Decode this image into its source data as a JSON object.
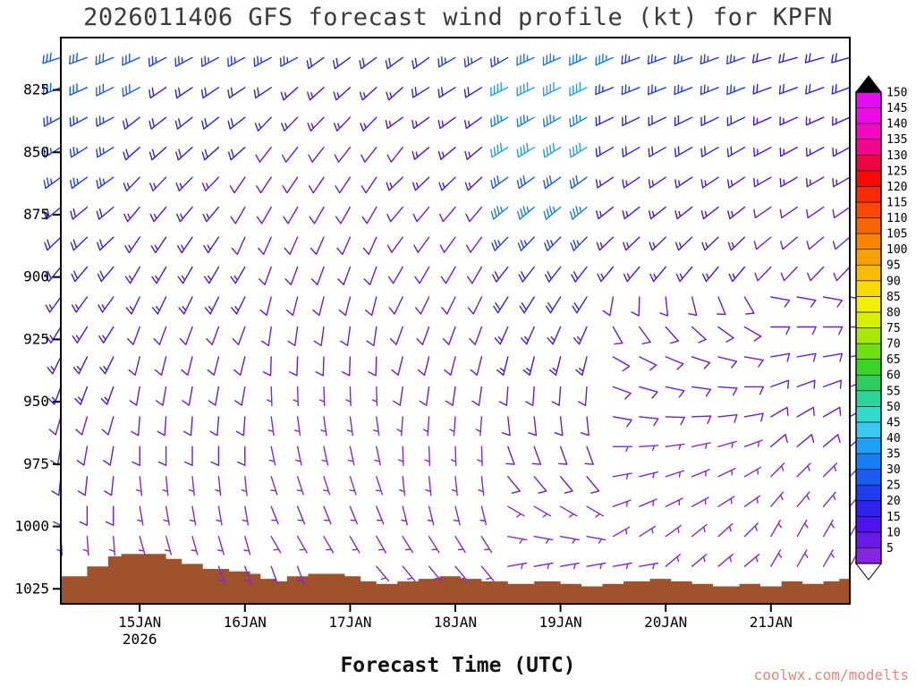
{
  "title": "2026011406 GFS forecast wind profile (kt) for KPFN",
  "xlabel": "Forecast Time (UTC)",
  "watermark": "coolwx.com/modelts",
  "colors": {
    "title_text": "#3c3c3c",
    "watermark_text": "#fa8072",
    "terrain": "#a0522d",
    "axis": "#000000"
  },
  "chart_data": {
    "type": "wind-barb-profile",
    "title": "2026011406 GFS forecast wind profile (kt) for KPFN",
    "model_run": "2026011406",
    "model": "GFS",
    "station": "KPFN",
    "units": "kt",
    "xlabel": "Forecast Time (UTC)",
    "y_axis": {
      "label_values": [
        825,
        850,
        875,
        900,
        925,
        950,
        975,
        1000,
        1025
      ],
      "domain": [
        804,
        1031
      ]
    },
    "x_axis": {
      "steps": 30,
      "ticks": [
        {
          "label": "15JAN",
          "sub": "2026",
          "step": 3
        },
        {
          "label": "16JAN",
          "step": 7
        },
        {
          "label": "17JAN",
          "step": 11
        },
        {
          "label": "18JAN",
          "step": 15
        },
        {
          "label": "19JAN",
          "step": 19
        },
        {
          "label": "20JAN",
          "step": 23
        },
        {
          "label": "21JAN",
          "step": 27
        }
      ]
    },
    "colorbar": {
      "values": [
        5,
        10,
        15,
        20,
        25,
        30,
        35,
        40,
        45,
        50,
        55,
        60,
        65,
        70,
        75,
        80,
        85,
        90,
        95,
        100,
        105,
        110,
        115,
        120,
        125,
        130,
        135,
        140,
        145,
        150
      ],
      "colors": [
        "#8426e0",
        "#6a1ae8",
        "#4b14ef",
        "#2d22ee",
        "#1f3cf0",
        "#1a5cf0",
        "#177df2",
        "#20a0f4",
        "#38c8f0",
        "#30dcc8",
        "#2cd49c",
        "#2ecc5e",
        "#3ad428",
        "#70e012",
        "#a8e80a",
        "#d6ee08",
        "#f2ee06",
        "#f8d806",
        "#f8bc04",
        "#f8a004",
        "#f88404",
        "#f86604",
        "#f84804",
        "#f82a04",
        "#f80808",
        "#ee0440",
        "#f2068c",
        "#f408c4",
        "#ee0ae4",
        "#e20cf0"
      ],
      "over_color": "#000000",
      "under_color": "#ffffff"
    },
    "terrain_color": "#a0522d",
    "terrain": [
      [
        0,
        1020
      ],
      [
        1,
        1016
      ],
      [
        1.8,
        1012
      ],
      [
        2.3,
        1011
      ],
      [
        3.4,
        1011
      ],
      [
        4,
        1013
      ],
      [
        4.6,
        1015
      ],
      [
        5.4,
        1017
      ],
      [
        6.4,
        1018
      ],
      [
        7.2,
        1019
      ],
      [
        7.6,
        1021
      ],
      [
        8.2,
        1022
      ],
      [
        8.6,
        1020
      ],
      [
        9.4,
        1019
      ],
      [
        10,
        1019
      ],
      [
        10.8,
        1020
      ],
      [
        11.4,
        1022
      ],
      [
        12,
        1023
      ],
      [
        12.8,
        1022
      ],
      [
        13.6,
        1021
      ],
      [
        14.4,
        1020
      ],
      [
        15.2,
        1021
      ],
      [
        16,
        1022
      ],
      [
        17,
        1023
      ],
      [
        18,
        1022
      ],
      [
        19,
        1023
      ],
      [
        19.8,
        1024
      ],
      [
        20.6,
        1023
      ],
      [
        21.4,
        1022
      ],
      [
        22.4,
        1021
      ],
      [
        23.2,
        1022
      ],
      [
        24,
        1023
      ],
      [
        24.8,
        1024
      ],
      [
        25.8,
        1023
      ],
      [
        26.6,
        1024
      ],
      [
        27.4,
        1022
      ],
      [
        28.2,
        1023
      ],
      [
        29,
        1022
      ],
      [
        29.6,
        1021
      ],
      [
        30,
        1021
      ]
    ],
    "barb_rows": [
      {
        "level": 812,
        "segments": [
          {
            "n": 4,
            "s": 30,
            "d": 252,
            "dd": -2
          },
          {
            "n": 6,
            "s": 25,
            "d": 242
          },
          {
            "n": 5,
            "s": 20,
            "d": 234
          },
          {
            "n": 3,
            "s": 25,
            "d": 240
          },
          {
            "n": 4,
            "s": 35,
            "d": 246
          },
          {
            "n": 5,
            "s": 25,
            "d": 250
          },
          {
            "n": 4,
            "s": 20,
            "d": 254
          }
        ]
      },
      {
        "level": 824,
        "segments": [
          {
            "n": 4,
            "s": 30,
            "d": 248,
            "dd": -2
          },
          {
            "n": 5,
            "s": 20,
            "d": 236
          },
          {
            "n": 5,
            "s": 15,
            "d": 228
          },
          {
            "n": 3,
            "s": 20,
            "d": 238
          },
          {
            "n": 4,
            "s": 40,
            "d": 244
          },
          {
            "n": 6,
            "s": 25,
            "d": 248
          },
          {
            "n": 4,
            "s": 20,
            "d": 250
          }
        ]
      },
      {
        "level": 836,
        "segments": [
          {
            "n": 3,
            "s": 25,
            "d": 242
          },
          {
            "n": 5,
            "s": 20,
            "d": 232
          },
          {
            "n": 5,
            "s": 15,
            "d": 224
          },
          {
            "n": 4,
            "s": 15,
            "d": 234
          },
          {
            "n": 4,
            "s": 35,
            "d": 240
          },
          {
            "n": 6,
            "s": 20,
            "d": 244
          },
          {
            "n": 4,
            "s": 15,
            "d": 246
          }
        ]
      },
      {
        "level": 848,
        "segments": [
          {
            "n": 3,
            "s": 25,
            "d": 238
          },
          {
            "n": 5,
            "s": 20,
            "d": 228
          },
          {
            "n": 6,
            "s": 10,
            "d": 218
          },
          {
            "n": 3,
            "s": 15,
            "d": 230
          },
          {
            "n": 4,
            "s": 40,
            "d": 238
          },
          {
            "n": 6,
            "s": 20,
            "d": 240
          },
          {
            "n": 4,
            "s": 15,
            "d": 242
          }
        ]
      },
      {
        "level": 860,
        "segments": [
          {
            "n": 3,
            "s": 25,
            "d": 234
          },
          {
            "n": 4,
            "s": 15,
            "d": 224
          },
          {
            "n": 6,
            "s": 10,
            "d": 214
          },
          {
            "n": 4,
            "s": 15,
            "d": 226
          },
          {
            "n": 4,
            "s": 30,
            "d": 234
          },
          {
            "n": 6,
            "s": 15,
            "d": 236
          },
          {
            "n": 4,
            "s": 15,
            "d": 240
          }
        ]
      },
      {
        "level": 872,
        "segments": [
          {
            "n": 3,
            "s": 20,
            "d": 230
          },
          {
            "n": 4,
            "s": 15,
            "d": 220
          },
          {
            "n": 6,
            "s": 10,
            "d": 210
          },
          {
            "n": 4,
            "s": 10,
            "d": 220
          },
          {
            "n": 4,
            "s": 35,
            "d": 230
          },
          {
            "n": 6,
            "s": 15,
            "d": 232
          },
          {
            "n": 4,
            "s": 10,
            "d": 236
          }
        ]
      },
      {
        "level": 884,
        "segments": [
          {
            "n": 3,
            "s": 20,
            "d": 226
          },
          {
            "n": 4,
            "s": 15,
            "d": 214
          },
          {
            "n": 6,
            "s": 10,
            "d": 204
          },
          {
            "n": 4,
            "s": 10,
            "d": 216
          },
          {
            "n": 4,
            "s": 25,
            "d": 224
          },
          {
            "n": 6,
            "s": 15,
            "d": 226
          },
          {
            "n": 4,
            "s": 10,
            "d": 230
          }
        ]
      },
      {
        "level": 896,
        "segments": [
          {
            "n": 3,
            "s": 20,
            "d": 220
          },
          {
            "n": 5,
            "s": 15,
            "d": 210
          },
          {
            "n": 5,
            "s": 10,
            "d": 200
          },
          {
            "n": 4,
            "s": 10,
            "d": 210
          },
          {
            "n": 4,
            "s": 20,
            "d": 218
          },
          {
            "n": 6,
            "s": 15,
            "d": 220
          },
          {
            "n": 4,
            "s": 10,
            "d": 224
          }
        ]
      },
      {
        "level": 908,
        "segments": [
          {
            "n": 3,
            "s": 15,
            "d": 216
          },
          {
            "n": 5,
            "s": 15,
            "d": 206
          },
          {
            "n": 5,
            "s": 10,
            "d": 194
          },
          {
            "n": 4,
            "s": 10,
            "d": 206
          },
          {
            "n": 4,
            "s": 20,
            "d": 212
          },
          {
            "n": 6,
            "s": 10,
            "d": 190,
            "dd": -8
          },
          {
            "n": 4,
            "s": 10,
            "d": 100
          }
        ]
      },
      {
        "level": 920,
        "segments": [
          {
            "n": 3,
            "s": 15,
            "d": 212
          },
          {
            "n": 5,
            "s": 10,
            "d": 200
          },
          {
            "n": 5,
            "s": 10,
            "d": 188
          },
          {
            "n": 4,
            "s": 10,
            "d": 200
          },
          {
            "n": 4,
            "s": 15,
            "d": 204
          },
          {
            "n": 6,
            "s": 10,
            "d": 150,
            "dd": -6
          },
          {
            "n": 4,
            "s": 10,
            "d": 90
          }
        ]
      },
      {
        "level": 932,
        "segments": [
          {
            "n": 3,
            "s": 15,
            "d": 206
          },
          {
            "n": 5,
            "s": 10,
            "d": 194
          },
          {
            "n": 5,
            "s": 10,
            "d": 182
          },
          {
            "n": 4,
            "s": 10,
            "d": 194
          },
          {
            "n": 4,
            "s": 15,
            "d": 194
          },
          {
            "n": 6,
            "s": 10,
            "d": 120,
            "dd": -4
          },
          {
            "n": 4,
            "s": 10,
            "d": 80
          }
        ]
      },
      {
        "level": 944,
        "segments": [
          {
            "n": 3,
            "s": 15,
            "d": 200
          },
          {
            "n": 5,
            "s": 10,
            "d": 190
          },
          {
            "n": 5,
            "s": 5,
            "d": 178
          },
          {
            "n": 4,
            "s": 10,
            "d": 188
          },
          {
            "n": 4,
            "s": 10,
            "d": 184
          },
          {
            "n": 6,
            "s": 10,
            "d": 110,
            "dd": -4
          },
          {
            "n": 4,
            "s": 10,
            "d": 70
          }
        ]
      },
      {
        "level": 956,
        "segments": [
          {
            "n": 3,
            "s": 10,
            "d": 196
          },
          {
            "n": 5,
            "s": 10,
            "d": 184
          },
          {
            "n": 5,
            "s": 5,
            "d": 172
          },
          {
            "n": 4,
            "s": 5,
            "d": 184
          },
          {
            "n": 4,
            "s": 10,
            "d": 174
          },
          {
            "n": 6,
            "s": 10,
            "d": 100,
            "dd": -4
          },
          {
            "n": 4,
            "s": 10,
            "d": 60
          }
        ]
      },
      {
        "level": 968,
        "segments": [
          {
            "n": 3,
            "s": 10,
            "d": 190
          },
          {
            "n": 5,
            "s": 10,
            "d": 180
          },
          {
            "n": 5,
            "s": 5,
            "d": 168
          },
          {
            "n": 4,
            "s": 5,
            "d": 178
          },
          {
            "n": 4,
            "s": 10,
            "d": 160
          },
          {
            "n": 6,
            "s": 5,
            "d": 90,
            "dd": -4
          },
          {
            "n": 4,
            "s": 10,
            "d": 50
          }
        ]
      },
      {
        "level": 980,
        "segments": [
          {
            "n": 3,
            "s": 10,
            "d": 186
          },
          {
            "n": 5,
            "s": 5,
            "d": 174
          },
          {
            "n": 5,
            "s": 5,
            "d": 162
          },
          {
            "n": 4,
            "s": 5,
            "d": 174
          },
          {
            "n": 4,
            "s": 10,
            "d": 140
          },
          {
            "n": 6,
            "s": 5,
            "d": 80,
            "dd": -4
          },
          {
            "n": 4,
            "s": 5,
            "d": 45
          }
        ]
      },
      {
        "level": 992,
        "segments": [
          {
            "n": 3,
            "s": 10,
            "d": 180
          },
          {
            "n": 5,
            "s": 5,
            "d": 170
          },
          {
            "n": 5,
            "s": 5,
            "d": 158
          },
          {
            "n": 4,
            "s": 5,
            "d": 166
          },
          {
            "n": 4,
            "s": 5,
            "d": 120
          },
          {
            "n": 6,
            "s": 5,
            "d": 70,
            "dd": -3
          },
          {
            "n": 4,
            "s": 5,
            "d": 40
          }
        ]
      },
      {
        "level": 1004,
        "segments": [
          {
            "n": 3,
            "s": 5,
            "d": 176
          },
          {
            "n": 5,
            "s": 5,
            "d": 164
          },
          {
            "n": 5,
            "s": 5,
            "d": 150
          },
          {
            "n": 4,
            "s": 5,
            "d": 148
          },
          {
            "n": 4,
            "s": 5,
            "d": 100
          },
          {
            "n": 6,
            "s": 5,
            "d": 60,
            "dd": -3
          },
          {
            "n": 4,
            "s": 5,
            "d": 30
          }
        ]
      },
      {
        "level": 1016,
        "segments": [
          {
            "n": 6,
            "g": 1
          },
          {
            "n": 4,
            "s": 5,
            "d": 160
          },
          {
            "n": 2,
            "g": 1
          },
          {
            "n": 5,
            "s": 5,
            "d": 140
          },
          {
            "n": 6,
            "s": 5,
            "d": 80
          },
          {
            "n": 4,
            "s": 5,
            "d": 50
          },
          {
            "n": 4,
            "s": 5,
            "d": 30
          }
        ]
      }
    ]
  }
}
